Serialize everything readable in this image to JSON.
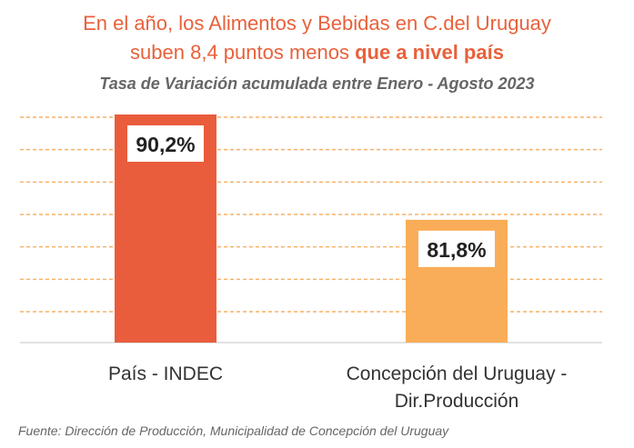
{
  "header": {
    "title_line1": "En el año, los Alimentos y Bebidas en C.del Uruguay",
    "title_line2_normal": "suben 8,4 puntos menos ",
    "title_line2_strong": "que a nivel país",
    "subtitle": "Tasa de Variación acumulada entre Enero - Agosto 2023"
  },
  "chart_data": {
    "type": "bar",
    "title": "En el año, los Alimentos y Bebidas en C.del Uruguay suben 8,4 puntos menos que a nivel país",
    "subtitle": "Tasa de Variación acumulada entre Enero - Agosto 2023",
    "categories": [
      "País - INDEC",
      "Concepción del Uruguay - Dir.Producción"
    ],
    "category_lines": [
      [
        "País - INDEC"
      ],
      [
        "Concepción del Uruguay -",
        "Dir.Producción"
      ]
    ],
    "values": [
      90.2,
      81.8
    ],
    "data_labels": [
      "90,2%",
      "81,8%"
    ],
    "bar_colors": [
      "#e95c3c",
      "#f9ad58"
    ],
    "gridline_color": "#f7b167",
    "ylim": [
      72,
      90.2
    ],
    "grid": true,
    "legend": "none"
  },
  "footer": {
    "source": "Fuente: Dirección de Producción, Municipalidad de Concepción del Uruguay"
  }
}
